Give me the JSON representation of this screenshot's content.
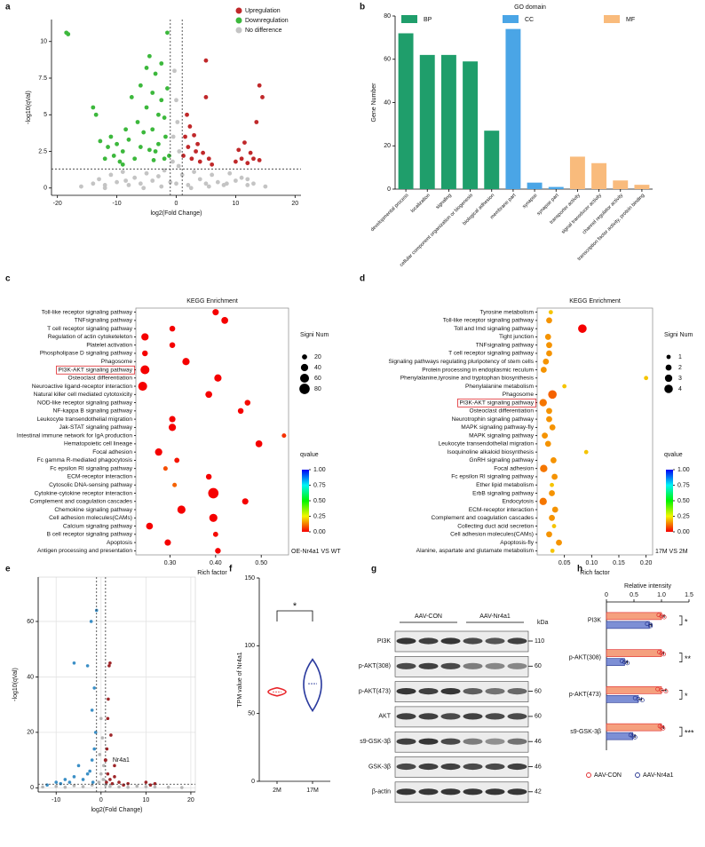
{
  "chart_data": [
    {
      "label": "a",
      "type": "scatter",
      "xlabel": "log2(Fold Change)",
      "ylabel": "-log10(qVal)",
      "xlim": [
        -21,
        21
      ],
      "ylim": [
        -0.5,
        11.5
      ],
      "xticks": [
        -20,
        -10,
        0,
        10,
        20
      ],
      "yticks": [
        0,
        2.5,
        5,
        7.5,
        10
      ],
      "threshold_x": [
        -1,
        1
      ],
      "threshold_y": 1.3,
      "legend": "upper right",
      "series": [
        {
          "name": "No difference",
          "color": "#c4c4c4",
          "x": [
            -16,
            -14,
            -13,
            -12,
            -11,
            -10,
            -9,
            -8,
            -7,
            -6,
            -5,
            -4,
            -3,
            -2,
            -1,
            0,
            1,
            2,
            3,
            4,
            5,
            6,
            7,
            8,
            9,
            10,
            11,
            12,
            13,
            15,
            -0.5,
            0,
            0.5,
            -0.3,
            0.2,
            -0.6,
            0.4,
            -8.5,
            -5.5,
            -2.5,
            2.5,
            5.5,
            8.5,
            -12,
            12
          ],
          "values": [
            0.1,
            0.3,
            0.6,
            0.2,
            0.9,
            0.4,
            1.1,
            0.2,
            0.7,
            0.3,
            1.0,
            0.5,
            0.8,
            1.2,
            0.4,
            0.3,
            0.9,
            0.2,
            1.1,
            0.6,
            0.3,
            0.9,
            0.4,
            0.2,
            1.0,
            0.5,
            0.7,
            0.2,
            0.3,
            0.1,
            3.5,
            6.0,
            2.5,
            8.0,
            4.5,
            1.8,
            1.5,
            0.5,
            0.0,
            0.1,
            0.0,
            0.1,
            0.3,
            0.0,
            0.6
          ]
        },
        {
          "name": "Downregulation",
          "color": "#3cb83c",
          "x": [
            -18.5,
            -18.2,
            -14,
            -13.5,
            -12.8,
            -12,
            -11.5,
            -11,
            -10.5,
            -10,
            -9.5,
            -9,
            -8.5,
            -8,
            -7.5,
            -7,
            -6.5,
            -6,
            -5.5,
            -5,
            -5,
            -4.5,
            -4.5,
            -4,
            -4,
            -3.5,
            -3.5,
            -3,
            -3,
            -2.5,
            -2.5,
            -2,
            -2,
            -1.5,
            -1.5,
            -1.8,
            -1.2,
            -6,
            -9,
            -3.8
          ],
          "values": [
            10.6,
            10.5,
            5.5,
            5.0,
            3.2,
            2.0,
            2.8,
            3.5,
            2.2,
            3.0,
            1.8,
            2.5,
            4.0,
            3.3,
            6.2,
            2.0,
            4.5,
            7.0,
            3.8,
            8.2,
            5.5,
            2.6,
            9.0,
            6.5,
            4.0,
            7.8,
            2.5,
            5.0,
            3.0,
            8.5,
            6.0,
            4.8,
            2.0,
            10.6,
            6.8,
            3.5,
            2.2,
            2.8,
            1.6,
            1.9
          ]
        },
        {
          "name": "Upregulation",
          "color": "#c0282a",
          "x": [
            1.2,
            1.5,
            1.8,
            2,
            2.3,
            2.6,
            3,
            3.3,
            3.6,
            4,
            4.5,
            5,
            5.5,
            6,
            5,
            10,
            10.5,
            11,
            11.5,
            12,
            12.5,
            13,
            13.5,
            14,
            14.5,
            14
          ],
          "values": [
            2.2,
            3.5,
            5.0,
            2.8,
            4.2,
            2.0,
            3.6,
            2.5,
            3.0,
            1.8,
            2.4,
            8.7,
            2.0,
            1.6,
            6.2,
            1.8,
            2.6,
            2.0,
            3.1,
            1.7,
            2.4,
            2.0,
            4.5,
            7.0,
            6.2,
            1.9
          ]
        }
      ]
    },
    {
      "label": "b",
      "type": "bar",
      "ylabel": "Gene Number",
      "legend_title": "GO domain",
      "legend": "top",
      "categories": [
        "developmental process",
        "localization",
        "signaling",
        "cellular component organization or biogenesis",
        "biological adhesion",
        "membrane part",
        "synapse",
        "synapse part",
        "transporter activity",
        "signal transducer activity",
        "channel regulator activity",
        "transcription factor activity, protein binding"
      ],
      "series": [
        {
          "name": "BP",
          "color": "#1f9e6b",
          "values": [
            72,
            62,
            62,
            59,
            27,
            null,
            null,
            null,
            null,
            null,
            null,
            null
          ]
        },
        {
          "name": "CC",
          "color": "#4aa5e6",
          "values": [
            null,
            null,
            null,
            null,
            null,
            74,
            3,
            1,
            null,
            null,
            null,
            null
          ]
        },
        {
          "name": "MF",
          "color": "#f9bb7c",
          "values": [
            null,
            null,
            null,
            null,
            null,
            null,
            null,
            null,
            15,
            12,
            4,
            2
          ]
        }
      ],
      "ylim": [
        0,
        80
      ],
      "yticks": [
        0,
        20,
        40,
        60,
        80
      ]
    },
    {
      "label": "c",
      "type": "dot",
      "title": "KEGG Enrichment",
      "xlabel": "Rich factor",
      "categories": [
        "Toll-like receptor signaling pathway",
        "TNFsignaling pathway",
        "T cell receptor signaling pathway",
        "Regulation of actin cytoketeleton",
        "Platelet activation",
        "Phospholipase D signaling pathway",
        "Phagosome",
        "PI3K-AKT signaling pathway",
        "Osteoclast differentiation",
        "Neuroactive ligand-receptor interaction",
        "Natural killer cell mediated cytotoxicity",
        "NOD-like receptor signaling pathway",
        "NF-kappa B signaling pathway",
        "Leukocyte transendothelial migration",
        "Jak-STAT signaling pathway",
        "Intestinal immune network for IgA production",
        "Hematopoietic cell lineage",
        "Focal adhesion",
        "Fc gamma R-mediated phagocytosis",
        "Fc epsilon RI signaling pathway",
        "ECM-receptor interaction",
        "Cytosolic DNA-sensing pathway",
        "Cytokine-cytokine receptor interaction",
        "Complement and coagulation cascades",
        "Chemokine signaling pathway",
        "Cell adhesion molecules(CAMs)",
        "Calcium signaling pathway",
        "B cell receptor signaling pathway",
        "Apoptosis",
        "Antigen processing and presentation"
      ],
      "values": [
        0.4,
        0.42,
        0.305,
        0.245,
        0.305,
        0.245,
        0.335,
        0.245,
        0.405,
        0.24,
        0.385,
        0.47,
        0.455,
        0.305,
        0.305,
        0.55,
        0.495,
        0.275,
        0.315,
        0.29,
        0.385,
        0.31,
        0.395,
        0.465,
        0.325,
        0.395,
        0.255,
        0.4,
        0.295,
        0.405
      ],
      "sizes": [
        30,
        35,
        25,
        40,
        25,
        25,
        40,
        60,
        40,
        60,
        35,
        25,
        25,
        30,
        40,
        15,
        35,
        40,
        20,
        15,
        25,
        15,
        80,
        30,
        50,
        50,
        35,
        20,
        30,
        25
      ],
      "qvalues": [
        0,
        0,
        0,
        0,
        0,
        0,
        0,
        0,
        0,
        0,
        0,
        0.01,
        0,
        0,
        0,
        0.05,
        0,
        0,
        0.02,
        0.08,
        0,
        0.1,
        0,
        0,
        0,
        0,
        0,
        0.01,
        0,
        0
      ],
      "xlim": [
        0.225,
        0.56
      ],
      "xticks": [
        {
          "value": 0.3,
          "label": "0.30"
        },
        {
          "value": 0.4,
          "label": "0.40"
        },
        {
          "value": 0.5,
          "label": "0.50"
        }
      ],
      "size_title": "Signi Num",
      "size_legend": [
        20,
        40,
        60,
        80
      ],
      "colorbar_title": "qvalue",
      "colorbar_lim": [
        0,
        1
      ],
      "colorbar_ticks": [
        {
          "value": 0,
          "label": "0.00"
        },
        {
          "value": 0.25,
          "label": "0.25"
        },
        {
          "value": 0.5,
          "label": "0.50"
        },
        {
          "value": 0.75,
          "label": "0.75"
        },
        {
          "value": 1,
          "label": "1.00"
        }
      ],
      "comparison": "OE-Nr4a1 VS WT",
      "highlight": [
        7
      ]
    },
    {
      "label": "d",
      "type": "dot",
      "title": "KEGG Enrichment",
      "xlabel": "Rich factor",
      "categories": [
        "Tyrosine metabolism",
        "Toll-like receptor signaling pathway",
        "Toll and Imd signaling pathway",
        "Tight junction",
        "TNFsignaling pathway",
        "T cell receptor signaling pathway",
        "Signaling pathways regulating pluripotency of stem cells",
        "Protein processing in endoplasmic reculum",
        "Phenylalanine,tyrosine and tryptophan biosynthesis",
        "Phenylalanine metabolism",
        "Phagosome",
        "PI3K-AKT signaling pathway",
        "Osteoclast differentiation",
        "Neurotrophin signaling pathway",
        "MAPK signaling pathway-fly",
        "MAPK signaling pathway",
        "Leukocyte transendothelial migration",
        "Isoquinoline alkaloid biosynthesis",
        "GnRH signaling pathway",
        "Focal adhesion",
        "Fc epsilon RI signaling pathway",
        "Ether lipid metabolism",
        "ErbB signaling pathway",
        "Endocytosis",
        "ECM-receptor interaction",
        "Complement and coagulation cascades",
        "Collecting duct acid secretion",
        "Cell adhesion molecules(CAMs)",
        "Apoptosis-fly",
        "Alanine, aspartate and glutamate metabolism"
      ],
      "values": [
        0.025,
        0.022,
        0.083,
        0.02,
        0.022,
        0.022,
        0.016,
        0.012,
        0.2,
        0.05,
        0.028,
        0.011,
        0.022,
        0.022,
        0.028,
        0.014,
        0.02,
        0.09,
        0.03,
        0.012,
        0.032,
        0.027,
        0.027,
        0.011,
        0.033,
        0.027,
        0.031,
        0.022,
        0.04,
        0.028
      ],
      "sizes": [
        1,
        2,
        4,
        2,
        2,
        2,
        2,
        2,
        1,
        1,
        4,
        3,
        2,
        2,
        2,
        2,
        2,
        1,
        2,
        3,
        2,
        1,
        2,
        3,
        2,
        2,
        1,
        2,
        2,
        1
      ],
      "qvalues": [
        0.2,
        0.15,
        0,
        0.15,
        0.15,
        0.15,
        0.15,
        0.15,
        0.2,
        0.2,
        0.1,
        0.12,
        0.15,
        0.15,
        0.15,
        0.15,
        0.15,
        0.2,
        0.15,
        0.12,
        0.15,
        0.2,
        0.15,
        0.12,
        0.15,
        0.15,
        0.2,
        0.15,
        0.15,
        0.2
      ],
      "xlim": [
        0,
        0.212
      ],
      "xticks": [
        0.05,
        {
          "value": 0.1,
          "label": "0.10"
        },
        0.15,
        {
          "value": 0.2,
          "label": "0.20"
        }
      ],
      "size_title": "Signi Num",
      "size_legend": [
        1,
        2,
        3,
        4
      ],
      "colorbar_title": "qvalue",
      "colorbar_lim": [
        0,
        1
      ],
      "colorbar_ticks": [
        {
          "value": 0,
          "label": "0.00"
        },
        {
          "value": 0.25,
          "label": "0.25"
        },
        {
          "value": 0.5,
          "label": "0.50"
        },
        {
          "value": 0.75,
          "label": "0.75"
        },
        {
          "value": 1,
          "label": "1.00"
        }
      ],
      "comparison": "17M VS 2M",
      "highlight": [
        11
      ]
    },
    {
      "label": "e",
      "type": "scatter",
      "xlabel": "log2(Fold Change)",
      "ylabel": "-log10(qVal)",
      "grid": true,
      "xlim": [
        -14,
        21
      ],
      "ylim": [
        -1.5,
        76
      ],
      "xticks": [
        -10,
        0,
        10,
        20
      ],
      "yticks": [
        0,
        20,
        40,
        60
      ],
      "threshold_x": [
        -1,
        1
      ],
      "threshold_y": 1.3,
      "series": [
        {
          "color": "#b5b5b5",
          "x": [
            -13,
            -10,
            -8,
            -6,
            -4,
            -2,
            -0.5,
            0,
            0.5,
            1,
            2,
            4,
            6,
            8,
            10,
            12,
            15,
            18,
            -0.3,
            0.3,
            0,
            0.6
          ],
          "values": [
            0.3,
            0.5,
            0.2,
            0.8,
            0.4,
            1,
            2,
            5,
            3,
            1,
            0.5,
            0.3,
            0.2,
            0.6,
            0.4,
            0.3,
            0.2,
            0.1,
            12,
            18,
            25,
            8
          ]
        },
        {
          "color": "#3b8fc6",
          "x": [
            -12,
            -10,
            -9,
            -8,
            -7,
            -6,
            -5,
            -4,
            -3,
            -2.5,
            -2,
            -1.5,
            -1.2,
            -1,
            -3,
            -2,
            -1.5,
            -6,
            -2.2,
            -1.8
          ],
          "values": [
            1,
            2,
            1.5,
            3,
            2,
            4,
            8,
            3,
            5,
            6,
            10,
            14,
            20,
            64,
            44,
            28,
            36,
            45,
            60,
            2
          ]
        },
        {
          "color": "#9e2528",
          "x": [
            1.2,
            1.5,
            2,
            2.5,
            3,
            4,
            5,
            6,
            2,
            1.5,
            1.3,
            10,
            11,
            12,
            3,
            1.8,
            2.2,
            1.6
          ],
          "values": [
            2,
            5,
            3,
            1.5,
            4,
            2,
            1,
            1.5,
            45,
            25,
            14,
            2,
            1,
            1.5,
            8,
            44,
            19,
            32
          ]
        }
      ],
      "highlight_point": {
        "label": "Nr4a1",
        "x": 1,
        "y": 10
      }
    },
    {
      "label": "f",
      "type": "violin",
      "ylabel": "TPM value of Nr4a1",
      "categories": [
        "2M",
        "17M"
      ],
      "colors": [
        "#e8262b",
        "#2a3a9e"
      ],
      "min": [
        63,
        52
      ],
      "median": [
        66,
        72
      ],
      "max": [
        69,
        90
      ],
      "ylim": [
        0,
        150
      ],
      "yticks": [
        0,
        50,
        100,
        150
      ],
      "significance": "*"
    },
    {
      "label": "g",
      "type": "blot",
      "groups": [
        "AAV-CON",
        "AAV-Nr4a1"
      ],
      "unit": "kDa",
      "rows": [
        {
          "name": "PI3K",
          "kDa": 110
        },
        {
          "name": "p-AKT(308)",
          "kDa": 60
        },
        {
          "name": "p-AKT(473)",
          "kDa": 60
        },
        {
          "name": "AKT",
          "kDa": 60
        },
        {
          "name": "s9-GSK-3β",
          "kDa": 46
        },
        {
          "name": "GSK-3β",
          "kDa": 46
        },
        {
          "name": "β-actin",
          "kDa": 42
        }
      ]
    },
    {
      "label": "h",
      "type": "hbar",
      "title": "Relative intensity",
      "categories": [
        "PI3K",
        "p-AKT(308)",
        "p-AKT(473)",
        "s9-GSK-3β"
      ],
      "xlim": [
        0,
        1.5
      ],
      "xticks": [
        0,
        0.5,
        {
          "value": 1,
          "label": "1.0"
        },
        1.5
      ],
      "legend": "bottom",
      "series": [
        {
          "name": "AAV-CON",
          "color": "#f5a07e",
          "edge": "#e0262a",
          "values": [
            1,
            1,
            1,
            1
          ],
          "errors": [
            0.05,
            0.04,
            0.08,
            0.04
          ],
          "points": [
            [
              0.95,
              1.0,
              1.05
            ],
            [
              0.96,
              1.0,
              1.04
            ],
            [
              0.93,
              1.0,
              1.08
            ],
            [
              0.97,
              1.0,
              1.03
            ]
          ]
        },
        {
          "name": "AAV-Nr4a1",
          "color": "#7d8fd5",
          "edge": "#24338f",
          "values": [
            0.78,
            0.33,
            0.58,
            0.48
          ],
          "errors": [
            0.04,
            0.05,
            0.06,
            0.04
          ],
          "points": [
            [
              0.74,
              0.8,
              0.8
            ],
            [
              0.28,
              0.33,
              0.38
            ],
            [
              0.52,
              0.58,
              0.65
            ],
            [
              0.44,
              0.48,
              0.52
            ]
          ]
        }
      ],
      "significance": [
        "*",
        "**",
        "*",
        "***"
      ]
    }
  ]
}
